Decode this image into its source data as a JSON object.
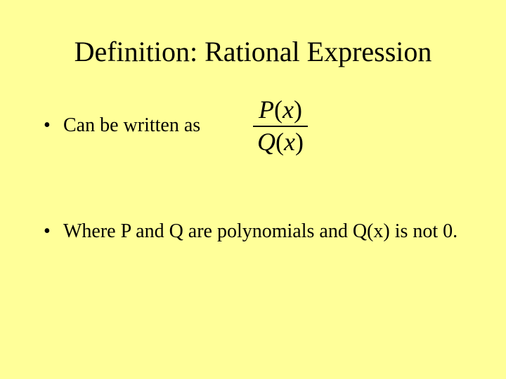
{
  "background_color": "#ffff99",
  "text_color": "#000000",
  "font_family": "Times New Roman",
  "title": "Definition: Rational Expression",
  "title_fontsize": 40,
  "body_fontsize": 28,
  "bullets": {
    "b1": "Can be written as",
    "b2": "Where P and Q are polynomials and Q(x) is not 0."
  },
  "bullet_char": "•",
  "fraction": {
    "numerator": "P(x)",
    "denominator": "Q(x)",
    "fontsize": 36,
    "italic": true
  }
}
